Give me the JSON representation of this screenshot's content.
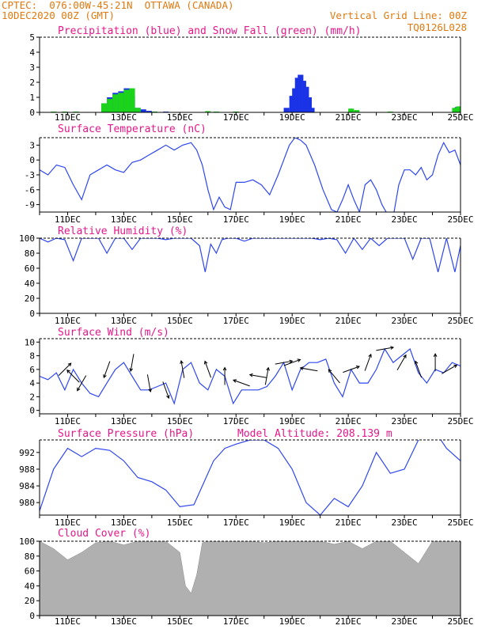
{
  "header": {
    "line1_left": "CPTEC:  076:00W-45:21N  OTTAWA (CANADA)",
    "line2_left": "10DEC2020 00Z (GMT)",
    "line2_right": "Vertical Grid Line: 00Z",
    "line3_right": "TQ0126L028"
  },
  "colors": {
    "header": "#e07a10",
    "title": "#e6178a",
    "line": "#2f47ee",
    "snow": "#1bd31b",
    "precip": "#1a33e6",
    "cloud": "#b0b0b0"
  },
  "chart_data": [
    {
      "type": "bar",
      "title": "Precipitation (blue) and Snow Fall (green) (mm/h)",
      "x_tick_labels": [
        "11DEC",
        "13DEC",
        "15DEC",
        "17DEC",
        "19DEC",
        "21DEC",
        "23DEC",
        "25DEC"
      ],
      "ylim": [
        0,
        5
      ],
      "y_ticks": [
        0,
        1,
        2,
        3,
        4,
        5
      ],
      "series": [
        {
          "name": "precipitation",
          "x": [
            2.3,
            2.5,
            2.7,
            2.9,
            3.1,
            3.3,
            3.5,
            3.7,
            3.9,
            4.1,
            4.5,
            7.0,
            8.8,
            9.0,
            9.1,
            9.2,
            9.3,
            9.4,
            9.5,
            9.6,
            9.7,
            14.9
          ],
          "values": [
            0.6,
            1.0,
            1.3,
            1.4,
            1.6,
            1.1,
            0.3,
            0.2,
            0.1,
            0.05,
            0.05,
            0.05,
            0.3,
            1.1,
            1.6,
            2.3,
            2.5,
            2.1,
            1.7,
            1.0,
            0.3,
            0.35
          ]
        },
        {
          "name": "snowfall",
          "x": [
            0.5,
            0.9,
            1.3,
            2.3,
            2.5,
            2.7,
            2.9,
            3.1,
            3.3,
            3.5,
            4.1,
            6.0,
            6.3,
            7.0,
            11.1,
            11.3,
            12.5,
            14.8,
            14.95
          ],
          "values": [
            0.05,
            0.05,
            0.05,
            0.6,
            0.9,
            1.2,
            1.3,
            1.5,
            1.6,
            0.3,
            0.05,
            0.08,
            0.05,
            0.05,
            0.25,
            0.15,
            0.05,
            0.3,
            0.4
          ]
        }
      ]
    },
    {
      "type": "line",
      "title": "Surface Temperature (nC)",
      "x_tick_labels": [
        "11DEC",
        "13DEC",
        "15DEC",
        "17DEC",
        "19DEC",
        "21DEC",
        "23DEC",
        "25DEC"
      ],
      "ylim": [
        -10.5,
        4.5
      ],
      "y_ticks": [
        -9,
        -6,
        -3,
        0,
        3
      ],
      "x": [
        0,
        0.3,
        0.6,
        0.9,
        1.2,
        1.5,
        1.8,
        2.1,
        2.4,
        2.7,
        3.0,
        3.3,
        3.6,
        3.9,
        4.2,
        4.5,
        4.8,
        5.1,
        5.4,
        5.6,
        5.8,
        6.0,
        6.2,
        6.4,
        6.6,
        6.8,
        7.0,
        7.3,
        7.6,
        7.9,
        8.2,
        8.5,
        8.7,
        8.9,
        9.1,
        9.3,
        9.5,
        9.8,
        10.1,
        10.4,
        10.6,
        10.8,
        11.0,
        11.2,
        11.4,
        11.6,
        11.8,
        12.0,
        12.2,
        12.4,
        12.6,
        12.8,
        13.0,
        13.2,
        13.4,
        13.6,
        13.8,
        14.0,
        14.2,
        14.4,
        14.6,
        14.8,
        15.0
      ],
      "values": [
        -2,
        -3,
        -1,
        -1.5,
        -5,
        -8,
        -3,
        -2,
        -1,
        -2,
        -2.5,
        -0.5,
        0,
        1,
        2,
        3,
        2,
        3,
        3.5,
        2,
        -1,
        -6,
        -10,
        -7.5,
        -9.5,
        -10,
        -4.5,
        -4.5,
        -4,
        -5,
        -7,
        -3,
        0,
        3,
        4.5,
        4,
        3,
        -1,
        -6,
        -10,
        -10.5,
        -8,
        -5,
        -8,
        -10.5,
        -5,
        -4,
        -6,
        -9,
        -11,
        -11.5,
        -5,
        -2,
        -2,
        -3,
        -1.5,
        -4,
        -3,
        1,
        3.5,
        1.5,
        2,
        -1
      ]
    },
    {
      "type": "line",
      "title": "Relative Humidity (%)",
      "x_tick_labels": [
        "11DEC",
        "13DEC",
        "15DEC",
        "17DEC",
        "19DEC",
        "21DEC",
        "23DEC",
        "25DEC"
      ],
      "ylim": [
        0,
        100
      ],
      "y_ticks": [
        0,
        20,
        40,
        60,
        80,
        100
      ],
      "x": [
        0,
        0.3,
        0.6,
        0.9,
        1.2,
        1.5,
        1.8,
        2.1,
        2.4,
        2.7,
        3.0,
        3.3,
        3.6,
        3.9,
        4.2,
        4.5,
        4.8,
        5.1,
        5.4,
        5.7,
        5.9,
        6.1,
        6.3,
        6.5,
        6.7,
        7.0,
        7.3,
        7.6,
        7.9,
        8.2,
        8.5,
        8.8,
        9.1,
        9.4,
        9.7,
        10.0,
        10.3,
        10.6,
        10.9,
        11.2,
        11.5,
        11.8,
        12.1,
        12.4,
        12.7,
        13.0,
        13.3,
        13.6,
        13.9,
        14.2,
        14.5,
        14.8,
        15.0
      ],
      "values": [
        100,
        95,
        100,
        98,
        70,
        100,
        100,
        100,
        80,
        100,
        100,
        85,
        100,
        100,
        100,
        98,
        100,
        100,
        100,
        90,
        55,
        92,
        80,
        98,
        100,
        100,
        96,
        100,
        100,
        100,
        100,
        100,
        100,
        100,
        100,
        98,
        100,
        98,
        80,
        100,
        85,
        100,
        90,
        100,
        100,
        100,
        72,
        100,
        100,
        55,
        100,
        55,
        90
      ]
    },
    {
      "type": "line",
      "title": "Surface Wind (m/s)",
      "x_tick_labels": [
        "11DEC",
        "13DEC",
        "15DEC",
        "17DEC",
        "19DEC",
        "21DEC",
        "23DEC",
        "25DEC"
      ],
      "ylim": [
        -0.5,
        10.5
      ],
      "y_ticks": [
        0,
        2,
        4,
        6,
        8,
        10
      ],
      "x": [
        0,
        0.3,
        0.6,
        0.9,
        1.2,
        1.5,
        1.8,
        2.1,
        2.4,
        2.7,
        3.0,
        3.3,
        3.6,
        3.9,
        4.2,
        4.5,
        4.8,
        5.1,
        5.4,
        5.7,
        6.0,
        6.3,
        6.6,
        6.9,
        7.2,
        7.5,
        7.8,
        8.1,
        8.4,
        8.7,
        9.0,
        9.3,
        9.6,
        9.9,
        10.2,
        10.5,
        10.8,
        11.1,
        11.4,
        11.7,
        12.0,
        12.3,
        12.6,
        12.9,
        13.2,
        13.5,
        13.8,
        14.1,
        14.4,
        14.7,
        15.0
      ],
      "values": [
        5,
        4.5,
        5.5,
        3,
        6,
        4,
        2.5,
        2,
        4,
        6,
        7,
        5,
        3,
        3,
        3.5,
        4,
        1,
        6,
        7,
        4,
        3,
        6,
        5,
        1,
        3,
        3,
        3,
        3.5,
        5,
        7,
        3,
        6,
        7,
        7,
        7.5,
        4,
        2,
        6,
        4,
        4,
        6,
        9,
        7,
        8,
        9,
        5.5,
        4,
        6,
        5.5,
        7,
        6.5
      ],
      "arrows": {
        "x": [
          0.9,
          1.2,
          1.5,
          2.4,
          3.3,
          3.9,
          4.5,
          5.1,
          6.0,
          6.6,
          7.2,
          7.8,
          8.1,
          8.7,
          9.0,
          9.6,
          10.5,
          11.1,
          11.7,
          12.3,
          12.9,
          13.5,
          14.1,
          14.6
        ],
        "direction_deg": [
          45,
          135,
          240,
          250,
          260,
          280,
          290,
          100,
          110,
          90,
          160,
          170,
          80,
          10,
          20,
          170,
          130,
          20,
          70,
          10,
          60,
          110,
          90,
          30
        ],
        "speed": [
          6,
          5,
          4,
          6,
          7,
          4,
          3,
          6,
          6,
          5,
          4,
          5,
          5,
          7,
          7,
          6,
          5,
          6,
          7,
          9,
          7,
          6,
          7,
          6
        ]
      }
    },
    {
      "type": "line",
      "title": "Surface Pressure (hPa)",
      "subtitle": "Model Altitude: 208.139 m",
      "x_tick_labels": [
        "11DEC",
        "13DEC",
        "15DEC",
        "17DEC",
        "19DEC",
        "21DEC",
        "23DEC",
        "25DEC"
      ],
      "ylim": [
        977,
        995
      ],
      "y_ticks": [
        980,
        984,
        988,
        992
      ],
      "x": [
        0,
        0.5,
        1.0,
        1.5,
        2.0,
        2.5,
        3.0,
        3.5,
        4.0,
        4.5,
        5.0,
        5.5,
        5.8,
        6.2,
        6.6,
        7.0,
        7.5,
        8.0,
        8.5,
        9.0,
        9.5,
        10.0,
        10.5,
        11.0,
        11.5,
        12.0,
        12.5,
        13.0,
        13.5,
        14.0,
        14.5,
        15.0
      ],
      "values": [
        978,
        988,
        993,
        991,
        993,
        992.5,
        990,
        986,
        985,
        983,
        979,
        979.5,
        984,
        990,
        993,
        994,
        995,
        995,
        993,
        988,
        980,
        977,
        981,
        979,
        984,
        992,
        987,
        988,
        995,
        998,
        993,
        990
      ]
    },
    {
      "type": "area",
      "title": "Cloud Cover (%)",
      "x_tick_labels": [
        "11DEC",
        "13DEC",
        "15DEC",
        "17DEC",
        "19DEC",
        "21DEC",
        "23DEC",
        "25DEC"
      ],
      "ylim": [
        0,
        100
      ],
      "y_ticks": [
        0,
        20,
        40,
        60,
        80,
        100
      ],
      "x": [
        0,
        0.5,
        1.0,
        1.5,
        2.0,
        2.5,
        3.0,
        3.5,
        4.0,
        4.5,
        5.0,
        5.2,
        5.4,
        5.6,
        5.8,
        6.0,
        6.5,
        7.0,
        7.5,
        8.0,
        8.5,
        9.0,
        9.5,
        10.0,
        10.5,
        11.0,
        11.5,
        12.0,
        12.5,
        13.0,
        13.5,
        14.0,
        14.5,
        15.0
      ],
      "values": [
        100,
        90,
        75,
        85,
        98,
        100,
        95,
        100,
        100,
        100,
        85,
        40,
        30,
        55,
        98,
        100,
        100,
        100,
        100,
        98,
        100,
        100,
        100,
        100,
        96,
        100,
        90,
        100,
        100,
        85,
        70,
        100,
        100,
        100
      ]
    }
  ]
}
